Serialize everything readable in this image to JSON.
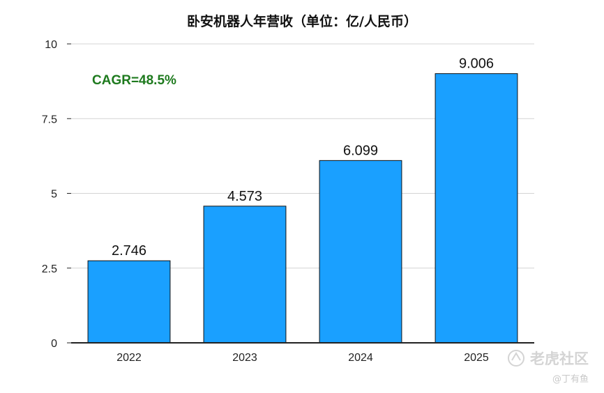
{
  "chart_data": {
    "type": "bar",
    "title": "卧安机器人年营收（单位：亿/人民币）",
    "categories": [
      "2022",
      "2023",
      "2024",
      "2025"
    ],
    "values": [
      2.746,
      4.573,
      6.099,
      9.006
    ],
    "data_labels": [
      "2.746",
      "4.573",
      "6.099",
      "9.006"
    ],
    "ylim": [
      0,
      10
    ],
    "yticks": [
      0,
      2.5,
      5,
      7.5,
      10
    ],
    "ytick_labels": [
      "0",
      "2.5",
      "5",
      "7.5",
      "10"
    ],
    "xlabel": "",
    "ylabel": "",
    "grid": "horizontal",
    "legend": "none",
    "annotation": {
      "text": "CAGR=48.5%",
      "color": "#1e7a1e"
    },
    "colors": {
      "bar": "#1aa0ff",
      "bar_edge": "#111111",
      "grid": "#d4d4d4",
      "axis": "#222222"
    }
  },
  "watermark": {
    "logo_text": "老虎社区",
    "author": "@丁有鱼"
  }
}
